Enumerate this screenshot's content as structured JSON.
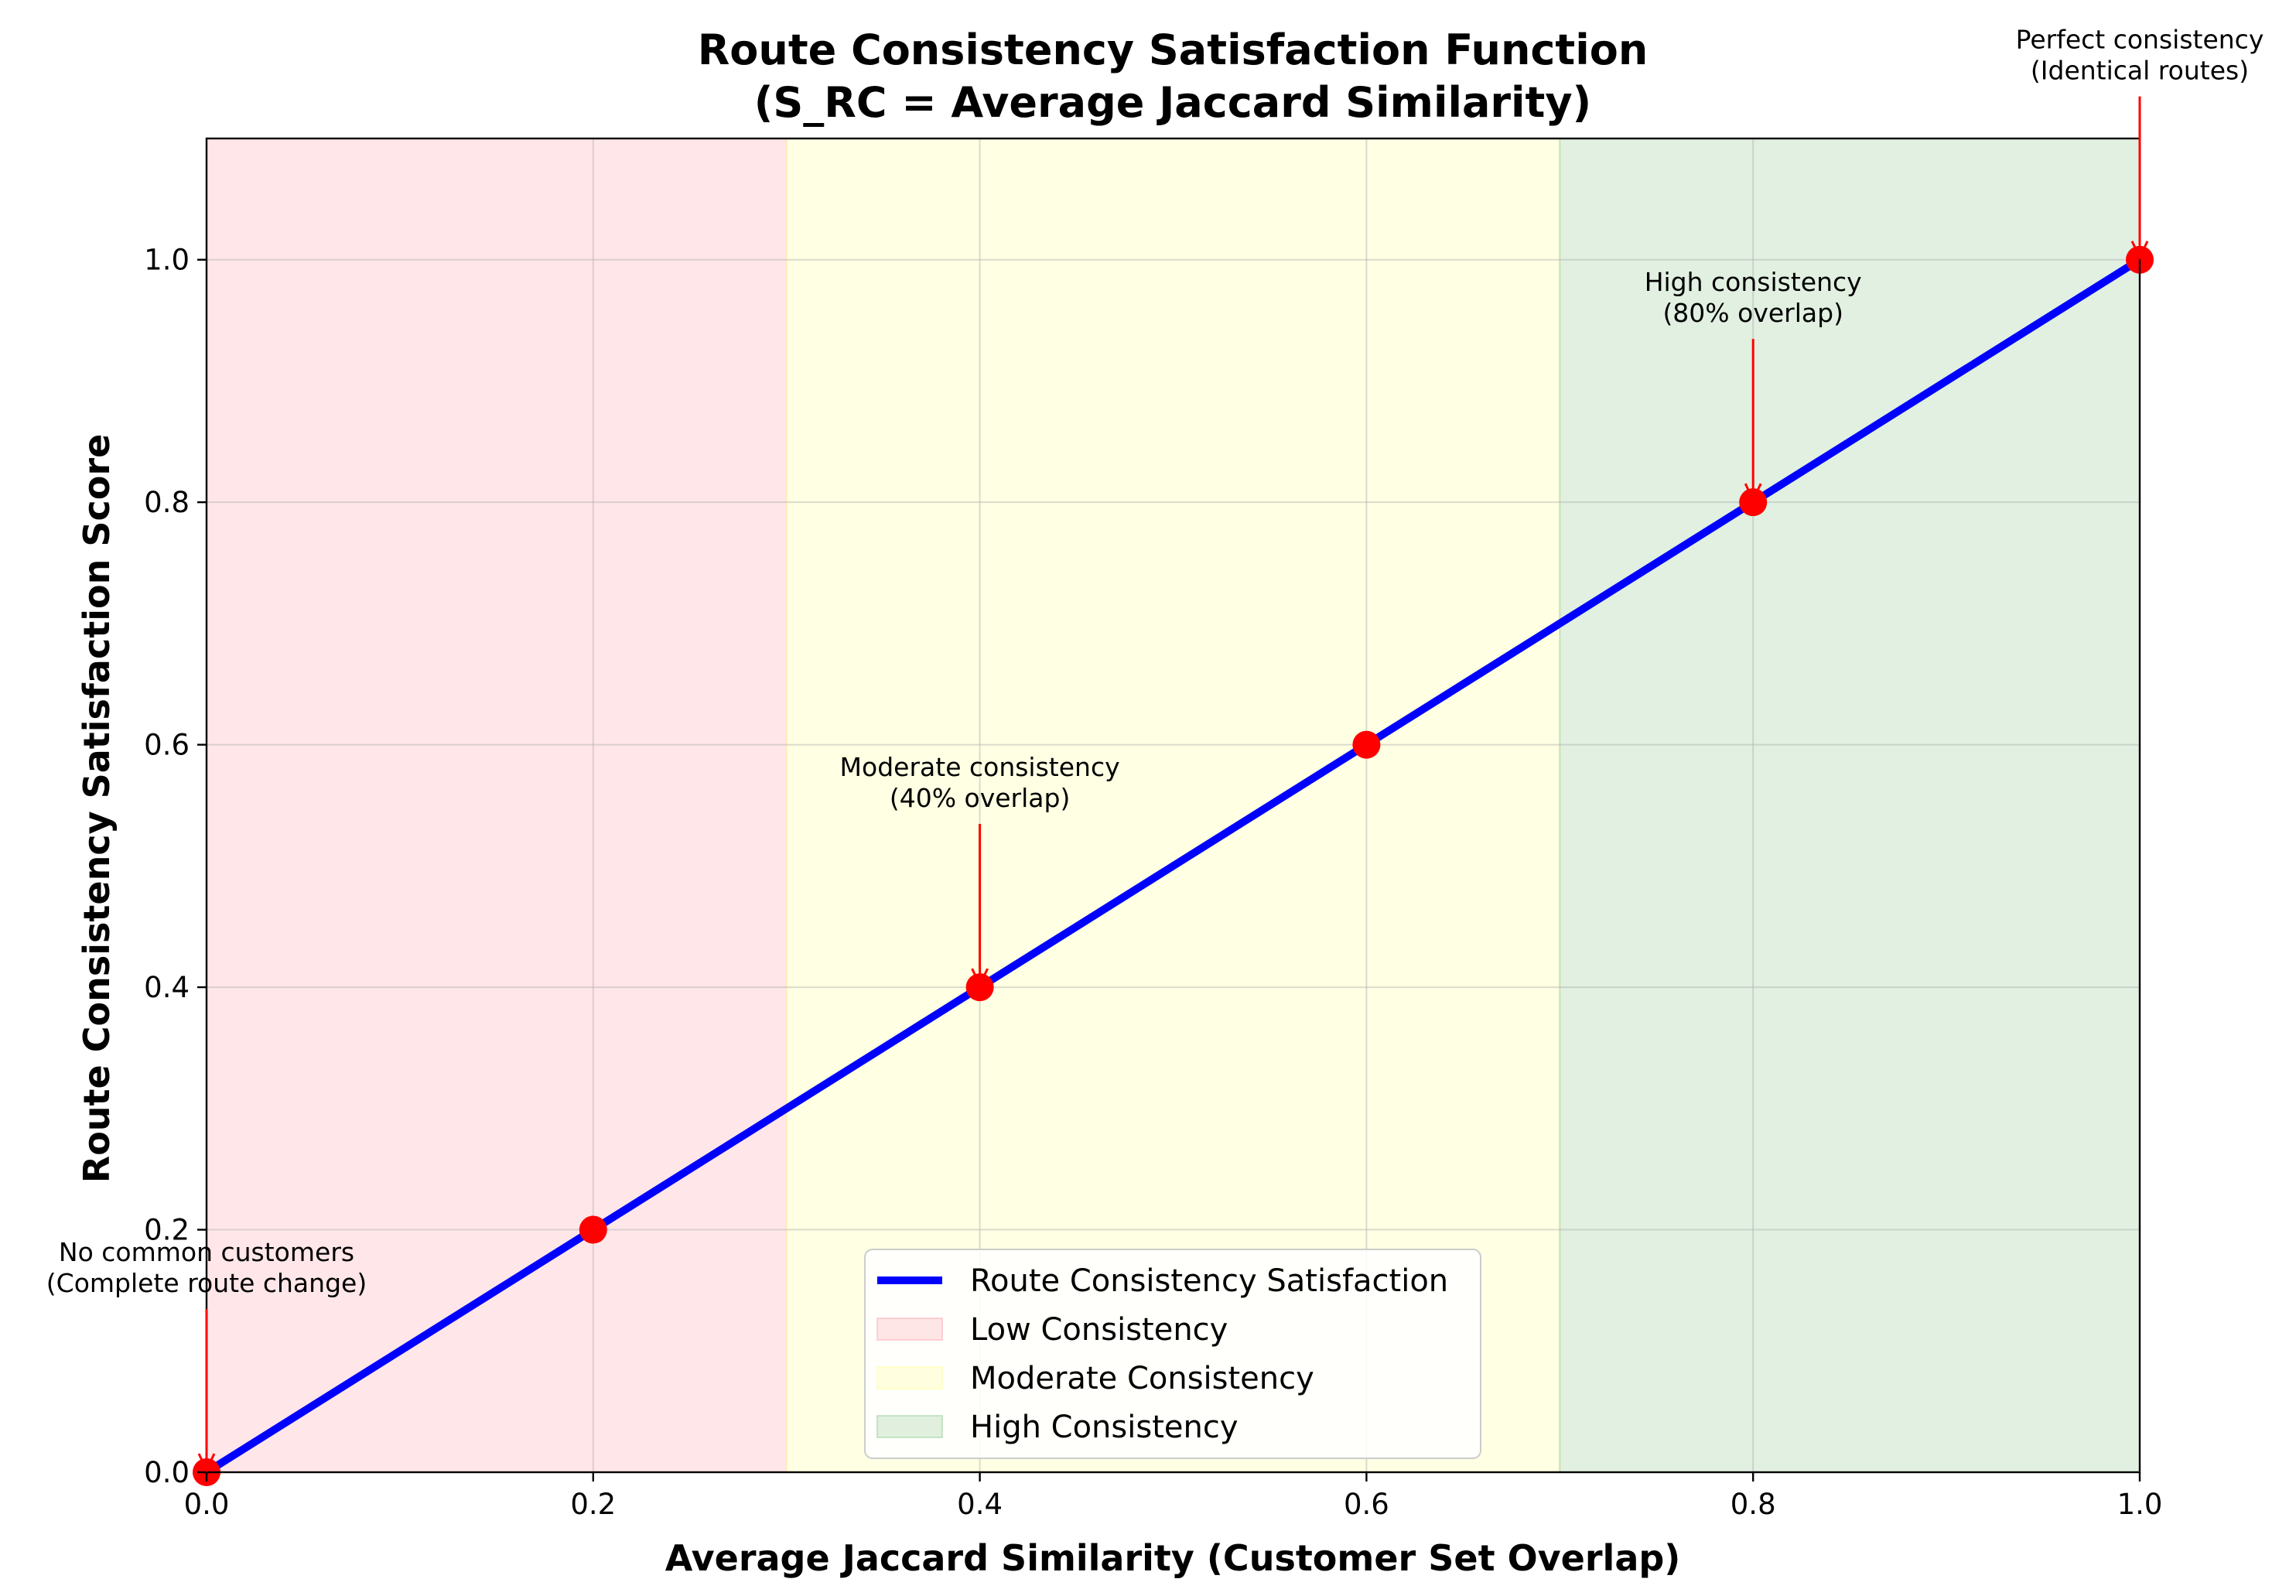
{
  "chart_data": {
    "type": "line",
    "title": "Route Consistency Satisfaction Function",
    "subtitle": "(S_RC = Average Jaccard Similarity)",
    "xlabel": "Average Jaccard Similarity (Customer Set Overlap)",
    "ylabel": "Route Consistency Satisfaction Score",
    "xlim": [
      0,
      1
    ],
    "ylim": [
      0,
      1.1
    ],
    "x_ticks": [
      "0.0",
      "0.2",
      "0.4",
      "0.6",
      "0.8",
      "1.0"
    ],
    "y_ticks": [
      "0.0",
      "0.2",
      "0.4",
      "0.6",
      "0.8",
      "1.0"
    ],
    "grid": true,
    "series": [
      {
        "name": "Route Consistency Satisfaction",
        "color": "#0000ff",
        "x": [
          0,
          1
        ],
        "y": [
          0,
          1
        ]
      }
    ],
    "markers": {
      "color": "#ff0000",
      "x": [
        0,
        0.2,
        0.4,
        0.6,
        0.8,
        1.0
      ],
      "y": [
        0,
        0.2,
        0.4,
        0.6,
        0.8,
        1.0
      ]
    },
    "regions": [
      {
        "name": "Low Consistency",
        "from": 0,
        "to": 0.3,
        "color": "#ffb6c1"
      },
      {
        "name": "Moderate Consistency",
        "from": 0.3,
        "to": 0.7,
        "color": "#ffffb0"
      },
      {
        "name": "High Consistency",
        "from": 0.7,
        "to": 1.0,
        "color": "#a8d5a8"
      }
    ],
    "annotations": [
      {
        "lines": [
          "No common customers",
          "(Complete route change)"
        ],
        "x": 0,
        "y": 0,
        "text_x": 0,
        "text_y": 0.15
      },
      {
        "lines": [
          "Moderate consistency",
          "(40% overlap)"
        ],
        "x": 0.4,
        "y": 0.4,
        "text_x": 0.4,
        "text_y": 0.55
      },
      {
        "lines": [
          "High consistency",
          "(80% overlap)"
        ],
        "x": 0.8,
        "y": 0.8,
        "text_x": 0.8,
        "text_y": 0.95
      },
      {
        "lines": [
          "Perfect consistency",
          "(Identical routes)"
        ],
        "x": 1.0,
        "y": 1.0,
        "text_x": 1.0,
        "text_y": 1.15
      }
    ],
    "legend_position": "bottom-center"
  }
}
